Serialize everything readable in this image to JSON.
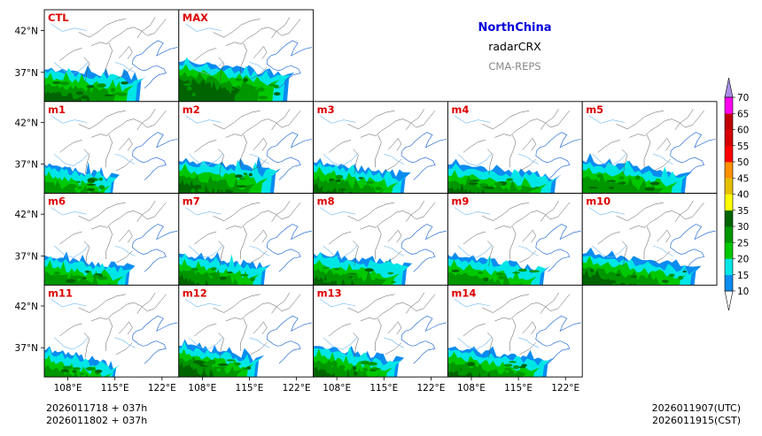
{
  "figure": {
    "region": "NorthChina",
    "product": "radarCRX",
    "system": "CMA-REPS",
    "init_utc": "2026011718  +  037h",
    "init_cst": "2026011802  +  037h",
    "valid_utc": "2026011907(UTC)",
    "valid_cst": "2026011915(CST)"
  },
  "colors": {
    "title": "#0000dd",
    "panel_label": "#dd0000",
    "system": "#888888"
  },
  "chart_data": {
    "type": "heatmap",
    "title": "NorthChina radarCRX",
    "subtitle": "CMA-REPS",
    "xlabel": "",
    "ylabel": "",
    "x_ticks": [
      "108°E",
      "115°E",
      "122°E"
    ],
    "y_ticks": [
      "42°N",
      "37°N"
    ],
    "xlim": [
      104.5,
      124.5
    ],
    "ylim": [
      33.5,
      44.5
    ],
    "members": [
      "CTL",
      "MAX",
      "m1",
      "m2",
      "m3",
      "m4",
      "m5",
      "m6",
      "m7",
      "m8",
      "m9",
      "m10",
      "m11",
      "m12",
      "m13",
      "m14"
    ],
    "colorbar": {
      "levels": [
        10,
        15,
        20,
        25,
        30,
        35,
        40,
        45,
        50,
        55,
        60,
        65,
        70
      ],
      "colors": [
        "#0a8cf0",
        "#00e6e6",
        "#00c800",
        "#009600",
        "#006400",
        "#ffff00",
        "#e6c000",
        "#ff9000",
        "#ff0000",
        "#d60000",
        "#c00000",
        "#ff00f0",
        "#9600b4",
        "#a98ee6"
      ]
    }
  }
}
